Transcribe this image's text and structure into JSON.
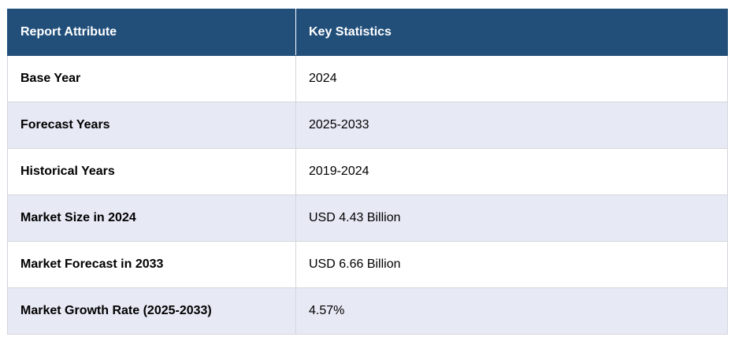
{
  "table": {
    "header": [
      "Report Attribute",
      "Key Statistics"
    ],
    "rows": [
      [
        "Base Year",
        "2024"
      ],
      [
        "Forecast Years",
        "2025-2033"
      ],
      [
        "Historical Years",
        "2019-2024"
      ],
      [
        "Market Size in 2024",
        "USD 4.43 Billion"
      ],
      [
        "Market Forecast in 2033",
        "USD 6.66 Billion"
      ],
      [
        "Market Growth Rate (2025-2033)",
        "4.57%"
      ]
    ]
  }
}
